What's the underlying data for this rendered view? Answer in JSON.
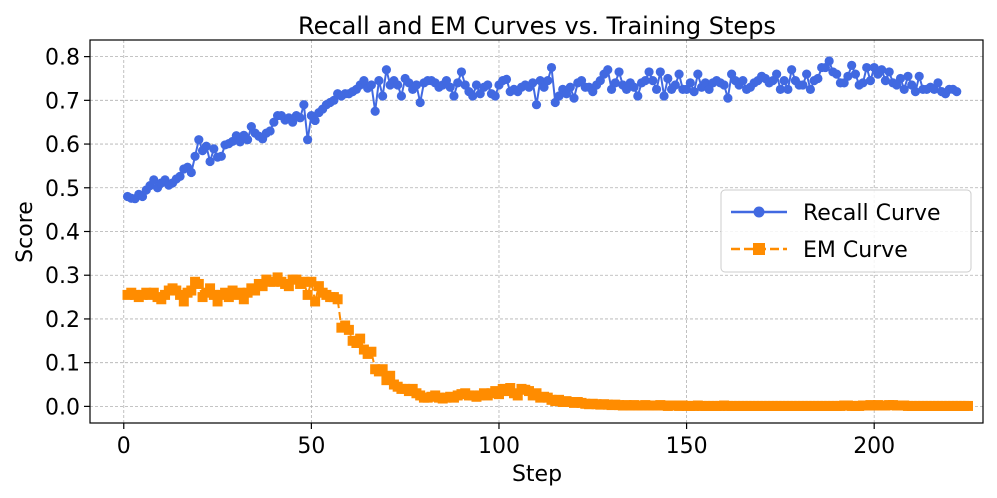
{
  "chart_data": {
    "type": "line",
    "title": "Recall and EM Curves vs. Training Steps",
    "xlabel": "Step",
    "ylabel": "Score",
    "xlim": [
      -9,
      229
    ],
    "ylim": [
      -0.038,
      0.838
    ],
    "xticks": [
      0,
      50,
      100,
      150,
      200
    ],
    "xtick_labels": [
      "0",
      "50",
      "100",
      "150",
      "200"
    ],
    "yticks": [
      0.0,
      0.1,
      0.2,
      0.3,
      0.4,
      0.5,
      0.6,
      0.7,
      0.8
    ],
    "ytick_labels": [
      "0.0",
      "0.1",
      "0.2",
      "0.3",
      "0.4",
      "0.5",
      "0.6",
      "0.7",
      "0.8"
    ],
    "grid": true,
    "legend_position": "center-right",
    "x_start": 1,
    "x_step": 1,
    "series": [
      {
        "name": "Recall Curve",
        "color": "#4169E1",
        "line_style": "solid",
        "marker": "circle",
        "values": [
          0.48,
          0.476,
          0.475,
          0.485,
          0.48,
          0.495,
          0.505,
          0.518,
          0.5,
          0.511,
          0.518,
          0.506,
          0.511,
          0.52,
          0.526,
          0.543,
          0.547,
          0.535,
          0.572,
          0.61,
          0.585,
          0.595,
          0.56,
          0.589,
          0.57,
          0.572,
          0.598,
          0.601,
          0.606,
          0.619,
          0.605,
          0.62,
          0.61,
          0.64,
          0.625,
          0.618,
          0.612,
          0.625,
          0.63,
          0.65,
          0.665,
          0.665,
          0.655,
          0.66,
          0.65,
          0.665,
          0.66,
          0.69,
          0.61,
          0.665,
          0.654,
          0.672,
          0.68,
          0.69,
          0.695,
          0.7,
          0.715,
          0.71,
          0.715,
          0.715,
          0.72,
          0.725,
          0.735,
          0.745,
          0.728,
          0.735,
          0.675,
          0.745,
          0.71,
          0.77,
          0.735,
          0.745,
          0.735,
          0.71,
          0.75,
          0.74,
          0.725,
          0.735,
          0.695,
          0.74,
          0.745,
          0.745,
          0.74,
          0.73,
          0.735,
          0.745,
          0.73,
          0.71,
          0.74,
          0.765,
          0.735,
          0.72,
          0.71,
          0.735,
          0.715,
          0.73,
          0.735,
          0.715,
          0.71,
          0.735,
          0.745,
          0.748,
          0.72,
          0.725,
          0.72,
          0.73,
          0.735,
          0.73,
          0.74,
          0.69,
          0.745,
          0.73,
          0.745,
          0.775,
          0.695,
          0.71,
          0.725,
          0.715,
          0.73,
          0.705,
          0.74,
          0.745,
          0.73,
          0.73,
          0.72,
          0.735,
          0.745,
          0.76,
          0.77,
          0.725,
          0.74,
          0.765,
          0.735,
          0.725,
          0.74,
          0.73,
          0.71,
          0.74,
          0.745,
          0.765,
          0.745,
          0.725,
          0.765,
          0.71,
          0.75,
          0.725,
          0.735,
          0.76,
          0.725,
          0.725,
          0.74,
          0.72,
          0.76,
          0.73,
          0.74,
          0.725,
          0.74,
          0.745,
          0.74,
          0.735,
          0.705,
          0.76,
          0.745,
          0.735,
          0.745,
          0.725,
          0.73,
          0.74,
          0.745,
          0.755,
          0.75,
          0.74,
          0.745,
          0.76,
          0.725,
          0.745,
          0.725,
          0.77,
          0.745,
          0.735,
          0.735,
          0.76,
          0.725,
          0.745,
          0.75,
          0.775,
          0.775,
          0.79,
          0.765,
          0.76,
          0.74,
          0.74,
          0.755,
          0.78,
          0.76,
          0.735,
          0.74,
          0.775,
          0.745,
          0.775,
          0.76,
          0.77,
          0.745,
          0.765,
          0.74,
          0.735,
          0.75,
          0.725,
          0.755,
          0.735,
          0.72,
          0.755,
          0.725,
          0.725,
          0.73,
          0.725,
          0.74,
          0.72,
          0.715,
          0.725,
          0.725,
          0.72
        ]
      },
      {
        "name": "EM Curve",
        "color": "#FF8C00",
        "line_style": "dashed",
        "marker": "square",
        "values": [
          0.255,
          0.26,
          0.255,
          0.25,
          0.255,
          0.26,
          0.255,
          0.26,
          0.25,
          0.245,
          0.255,
          0.265,
          0.27,
          0.265,
          0.255,
          0.24,
          0.26,
          0.265,
          0.285,
          0.28,
          0.25,
          0.26,
          0.27,
          0.255,
          0.24,
          0.255,
          0.26,
          0.25,
          0.265,
          0.255,
          0.26,
          0.245,
          0.26,
          0.27,
          0.265,
          0.28,
          0.275,
          0.29,
          0.285,
          0.285,
          0.295,
          0.285,
          0.28,
          0.275,
          0.29,
          0.29,
          0.28,
          0.285,
          0.255,
          0.285,
          0.24,
          0.275,
          0.26,
          0.255,
          0.25,
          0.25,
          0.245,
          0.18,
          0.185,
          0.175,
          0.15,
          0.145,
          0.155,
          0.13,
          0.12,
          0.125,
          0.085,
          0.08,
          0.085,
          0.06,
          0.07,
          0.05,
          0.045,
          0.04,
          0.04,
          0.035,
          0.04,
          0.03,
          0.025,
          0.02,
          0.02,
          0.022,
          0.025,
          0.02,
          0.018,
          0.02,
          0.022,
          0.02,
          0.025,
          0.028,
          0.03,
          0.025,
          0.025,
          0.022,
          0.025,
          0.03,
          0.025,
          0.03,
          0.035,
          0.028,
          0.04,
          0.035,
          0.042,
          0.03,
          0.025,
          0.04,
          0.038,
          0.035,
          0.025,
          0.03,
          0.02,
          0.022,
          0.02,
          0.015,
          0.012,
          0.015,
          0.01,
          0.012,
          0.01,
          0.008,
          0.01,
          0.008,
          0.006,
          0.005,
          0.006,
          0.005,
          0.004,
          0.005,
          0.004,
          0.003,
          0.004,
          0.003,
          0.002,
          0.003,
          0.002,
          0.003,
          0.002,
          0.002,
          0.003,
          0.002,
          0.002,
          0.002,
          0.003,
          0.002,
          0.001,
          0.002,
          0.002,
          0.001,
          0.002,
          0.001,
          0.001,
          0.001,
          0.002,
          0.001,
          0.001,
          0.001,
          0.001,
          0.001,
          0.001,
          0.002,
          0.001,
          0.001,
          0.001,
          0.001,
          0.001,
          0.001,
          0.001,
          0.001,
          0.001,
          0.001,
          0.001,
          0.001,
          0.001,
          0.001,
          0.001,
          0.001,
          0.001,
          0.001,
          0.001,
          0.001,
          0.001,
          0.001,
          0.001,
          0.001,
          0.001,
          0.001,
          0.001,
          0.001,
          0.001,
          0.001,
          0.001,
          0.002,
          0.002,
          0.001,
          0.001,
          0.001,
          0.002,
          0.002,
          0.003,
          0.002,
          0.003,
          0.002,
          0.002,
          0.003,
          0.003,
          0.002,
          0.002,
          0.002,
          0.001,
          0.001,
          0.001,
          0.001,
          0.001,
          0.001,
          0.001,
          0.001,
          0.001,
          0.001,
          0.001,
          0.001,
          0.001,
          0.001,
          0.001,
          0.001,
          0.001
        ]
      }
    ]
  }
}
